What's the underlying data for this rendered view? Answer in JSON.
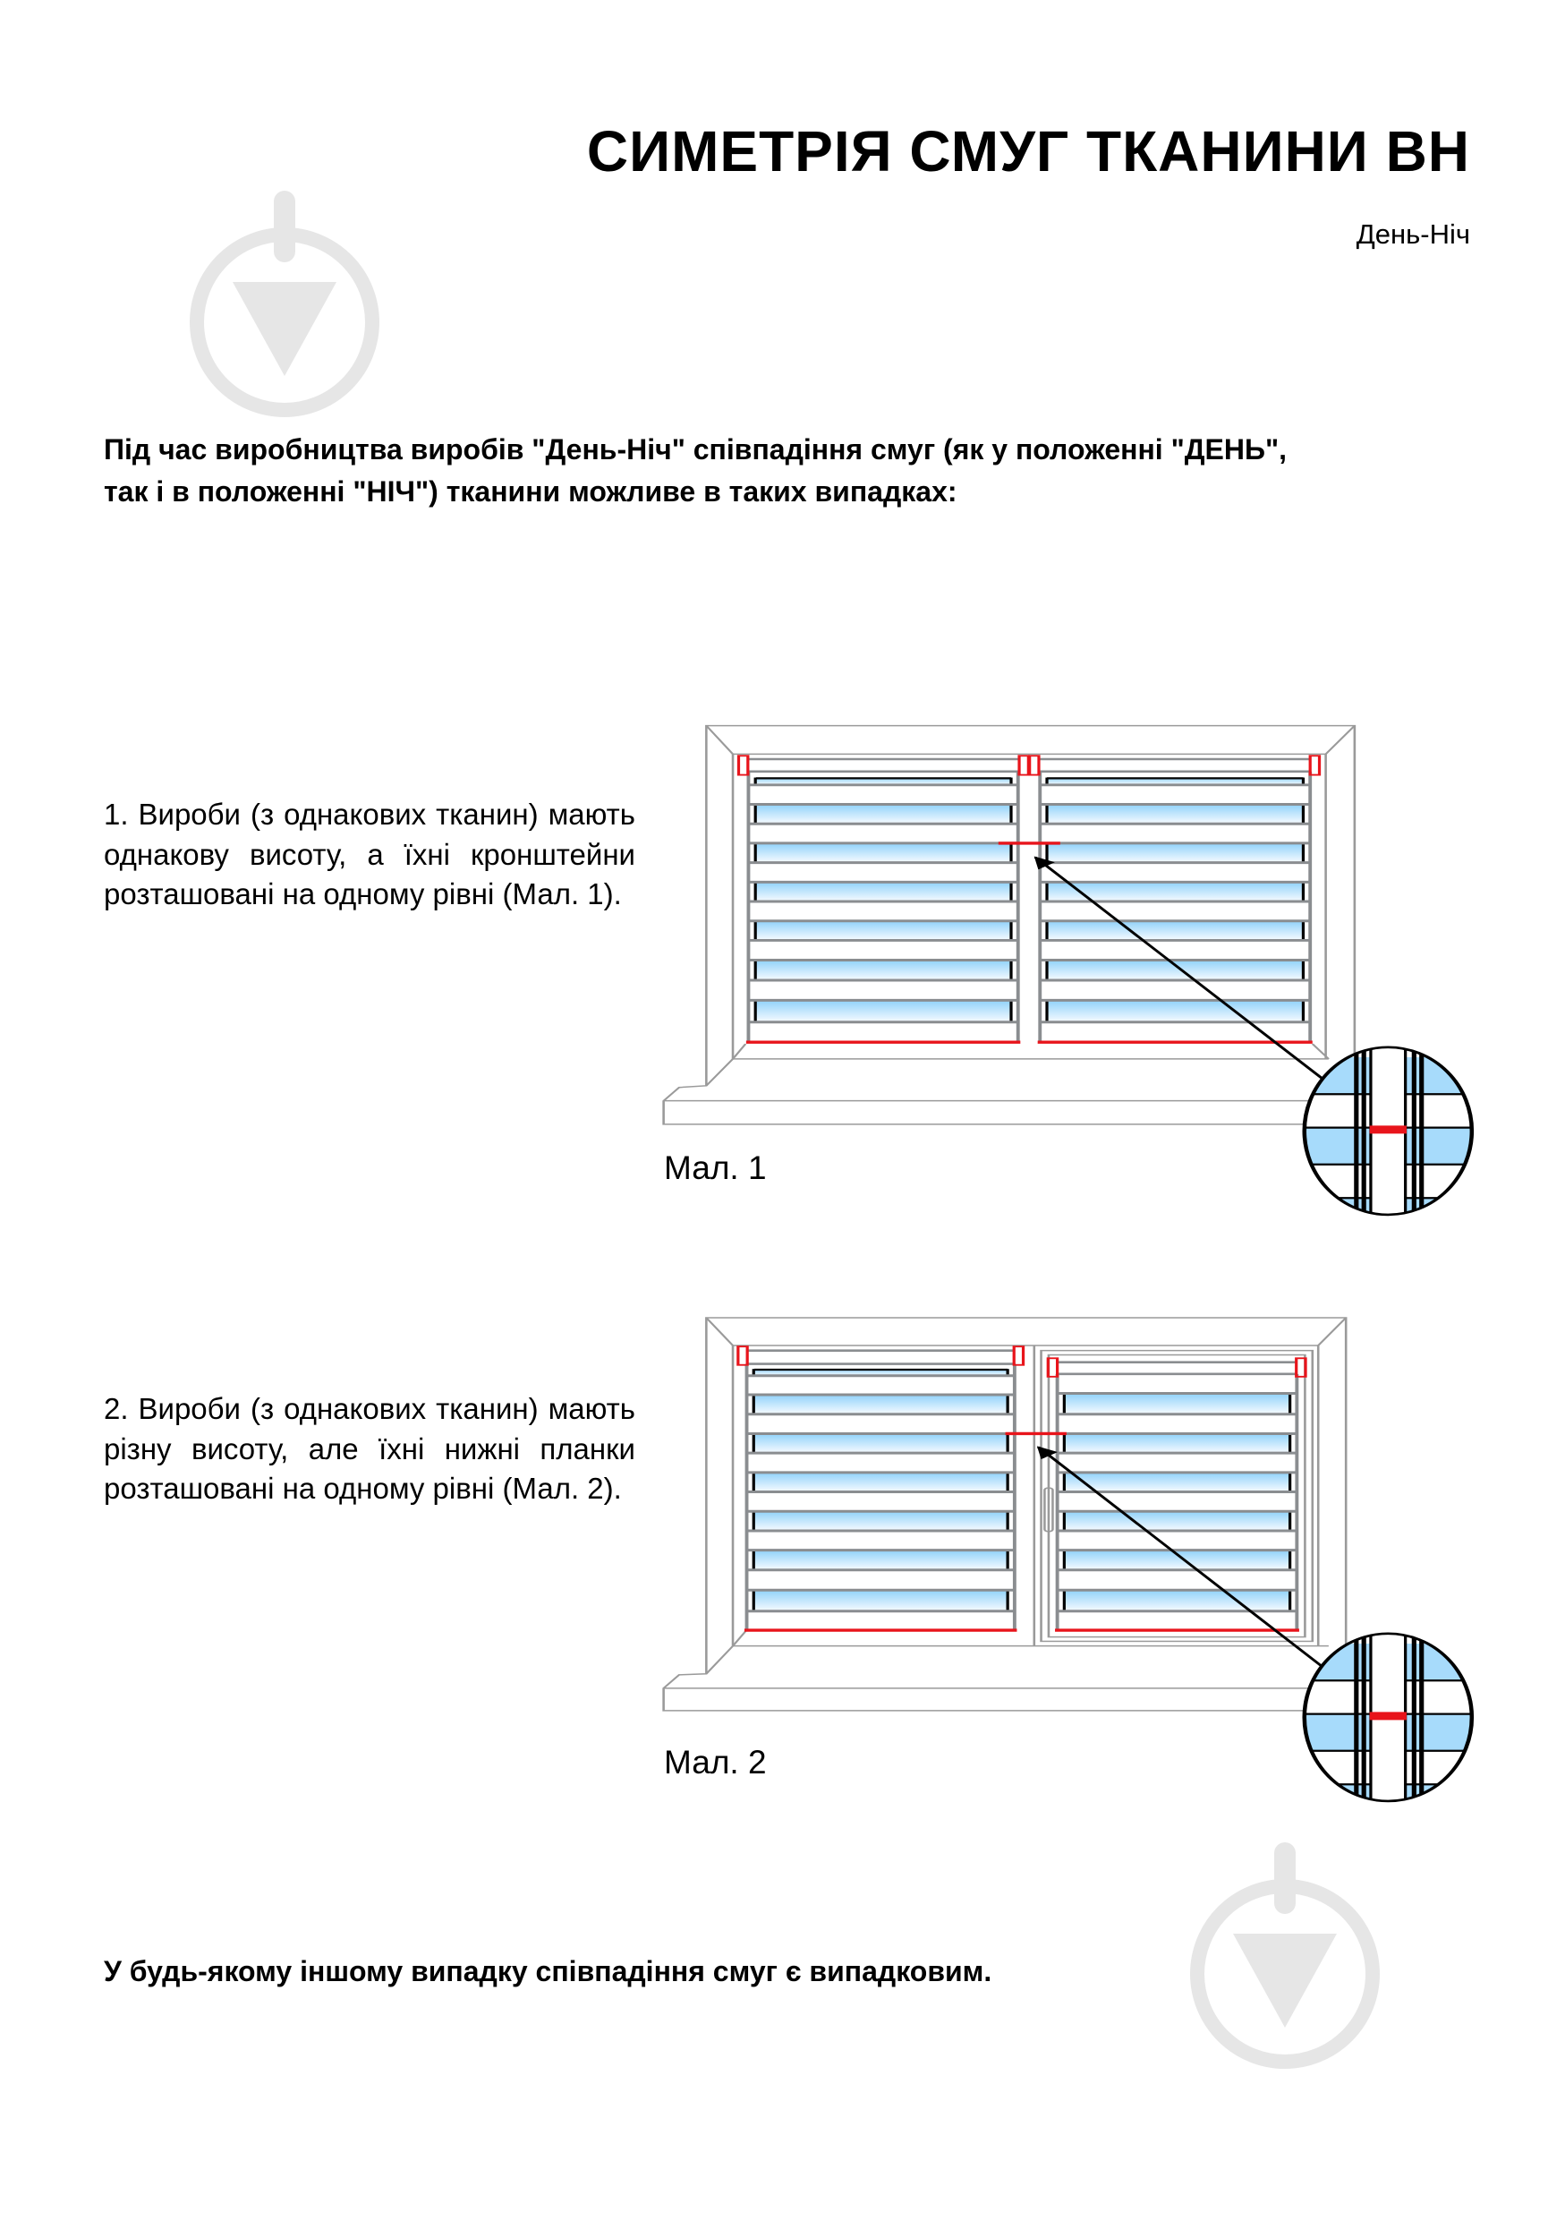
{
  "header": {
    "title": "СИМЕТРІЯ СМУГ ТКАНИНИ ВН",
    "subtitle": "День-Ніч"
  },
  "intro": {
    "line1": "Під час виробництва виробів \"День-Ніч\" співпадіння смуг (як у положенні \"ДЕНЬ\",",
    "line2": "так і в положенні \"НІЧ\") тканини можливе в таких випадках:"
  },
  "cases": [
    {
      "text": "1. Вироби (з однакових тканин) мають однакову висоту, а їхні кронштейни розташовані на одному рівні (Мал. 1).",
      "caption": "Мал. 1"
    },
    {
      "text": "2. Вироби (з однакових тканин) мають різну висоту, але їхні нижні планки розташовані на одному рівні (Мал. 2).",
      "caption": "Мал. 2"
    }
  ],
  "footer": {
    "note": "У будь-якому іншому випадку співпадіння смуг є випадковим."
  },
  "colors": {
    "accent_red": "#e8141b",
    "fabric_blue": "#90d2fa",
    "frame_grey": "#8a8d90",
    "watermark": "#e6e6e6"
  },
  "icons": [
    "watermark-download-icon",
    "zoom-detail-icon",
    "arrow-icon"
  ]
}
